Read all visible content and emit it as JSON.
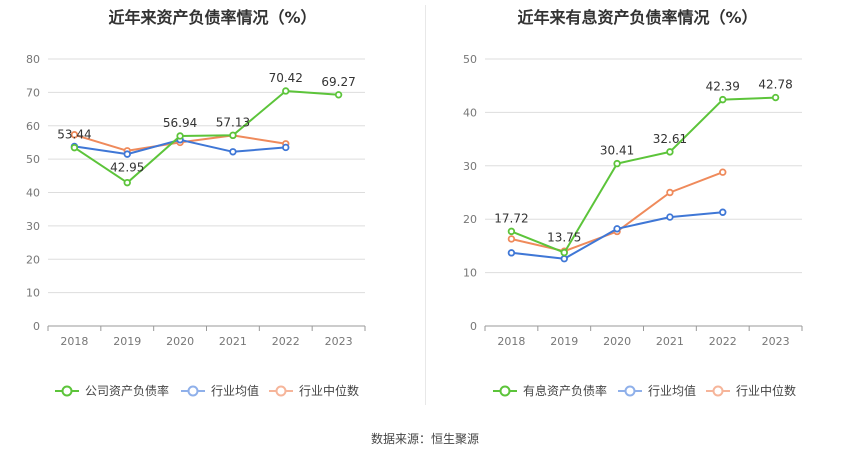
{
  "colors": {
    "primary": "#5cc43a",
    "industry_avg": "#3f77d6",
    "industry_median": "#ef8a5b",
    "legend_avg": "#8fb0ea",
    "legend_median": "#f6b59a",
    "grid": "#dddddd",
    "axis_text": "#777777"
  },
  "source_label": "数据来源：恒生聚源",
  "chart_data": [
    {
      "type": "line",
      "title": "近年来资产负债率情况（%）",
      "xlabel": "",
      "ylabel": "",
      "x": [
        "2018",
        "2019",
        "2020",
        "2021",
        "2022",
        "2023"
      ],
      "ylim": [
        0,
        80
      ],
      "yticks": [
        0,
        10,
        20,
        30,
        40,
        50,
        60,
        70,
        80
      ],
      "grid": true,
      "legend_position": "bottom",
      "series": [
        {
          "name": "公司资产负债率",
          "values": [
            53.44,
            42.95,
            56.94,
            57.13,
            70.42,
            69.27
          ],
          "labels": [
            "53.44",
            "42.95",
            "56.94",
            "57.13",
            "70.42",
            "69.27"
          ]
        },
        {
          "name": "行业均值",
          "values": [
            53.8,
            51.5,
            55.8,
            52.2,
            53.5,
            null
          ]
        },
        {
          "name": "行业中位数",
          "values": [
            57.3,
            52.5,
            55.0,
            57.1,
            54.6,
            null
          ]
        }
      ]
    },
    {
      "type": "line",
      "title": "近年来有息资产负债率情况（%）",
      "xlabel": "",
      "ylabel": "",
      "x": [
        "2018",
        "2019",
        "2020",
        "2021",
        "2022",
        "2023"
      ],
      "ylim": [
        0,
        50
      ],
      "yticks": [
        0,
        10,
        20,
        30,
        40,
        50
      ],
      "grid": true,
      "legend_position": "bottom",
      "series": [
        {
          "name": "有息资产负债率",
          "values": [
            17.72,
            13.75,
            30.41,
            32.61,
            42.39,
            42.78
          ],
          "labels": [
            "17.72",
            "13.75",
            "30.41",
            "32.61",
            "42.39",
            "42.78"
          ]
        },
        {
          "name": "行业均值",
          "values": [
            13.7,
            12.6,
            18.2,
            20.4,
            21.3,
            null
          ]
        },
        {
          "name": "行业中位数",
          "values": [
            16.3,
            14.0,
            17.7,
            25.0,
            28.8,
            null
          ]
        }
      ]
    }
  ]
}
